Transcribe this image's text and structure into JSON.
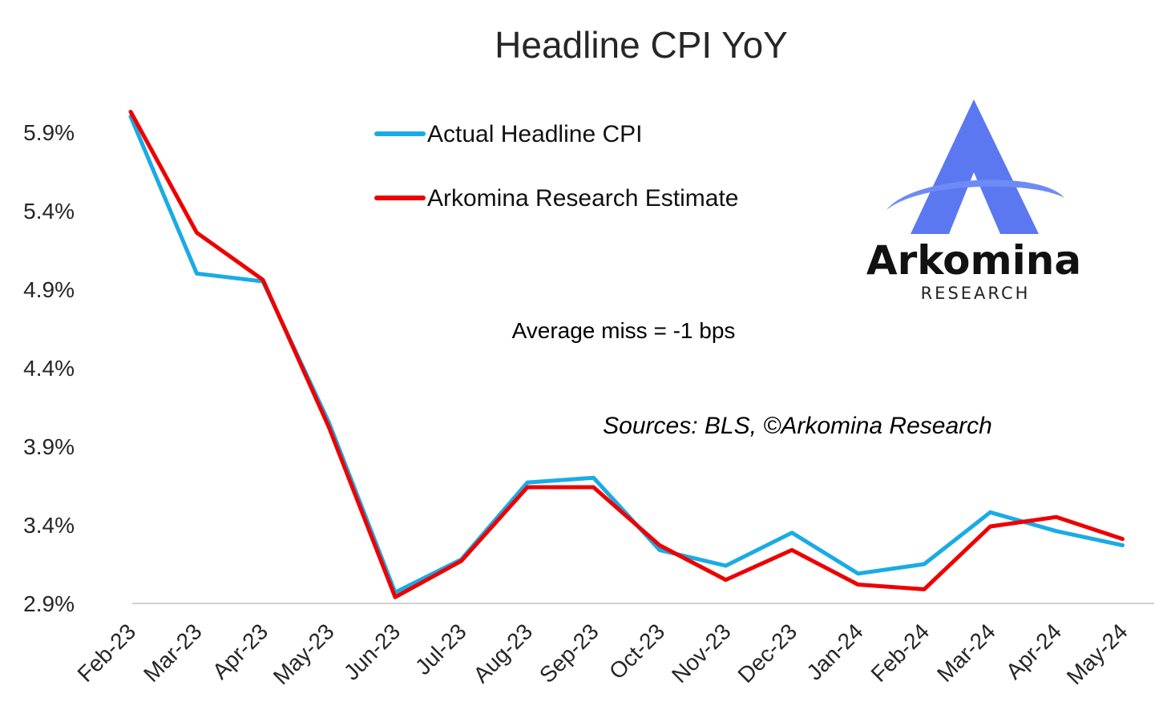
{
  "chart_data": {
    "type": "line",
    "title": "Headline CPI YoY",
    "categories": [
      "Feb-23",
      "Mar-23",
      "Apr-23",
      "May-23",
      "Jun-23",
      "Jul-23",
      "Aug-23",
      "Sep-23",
      "Oct-23",
      "Nov-23",
      "Dec-23",
      "Jan-24",
      "Feb-24",
      "Mar-24",
      "Apr-24",
      "May-24"
    ],
    "series": [
      {
        "name": "Actual Headline CPI",
        "color": "#1AABE5",
        "values": [
          6.0,
          5.0,
          4.95,
          4.05,
          2.97,
          3.18,
          3.67,
          3.7,
          3.24,
          3.14,
          3.35,
          3.09,
          3.15,
          3.48,
          3.36,
          3.27
        ]
      },
      {
        "name": "Arkomina Research Estimate",
        "color": "#EE0000",
        "values": [
          6.03,
          5.26,
          4.96,
          4.02,
          2.94,
          3.17,
          3.64,
          3.64,
          3.27,
          3.05,
          3.24,
          3.02,
          2.99,
          3.39,
          3.45,
          3.31
        ]
      }
    ],
    "yticks": [
      "5.9%",
      "5.4%",
      "4.9%",
      "4.4%",
      "3.9%",
      "3.4%",
      "2.9%"
    ],
    "ylim": [
      2.9,
      6.1
    ],
    "xlabel": "",
    "ylabel": "",
    "grid": false,
    "legend_position": "top-center"
  },
  "annotations": {
    "average_miss": "Average miss = -1 bps",
    "sources": "Sources: BLS, ©Arkomina Research"
  },
  "logo": {
    "name": "Arkomina",
    "subtitle": "RESEARCH",
    "brand_color": "#5B78F0",
    "swoosh_color": "#6E8BF5"
  }
}
